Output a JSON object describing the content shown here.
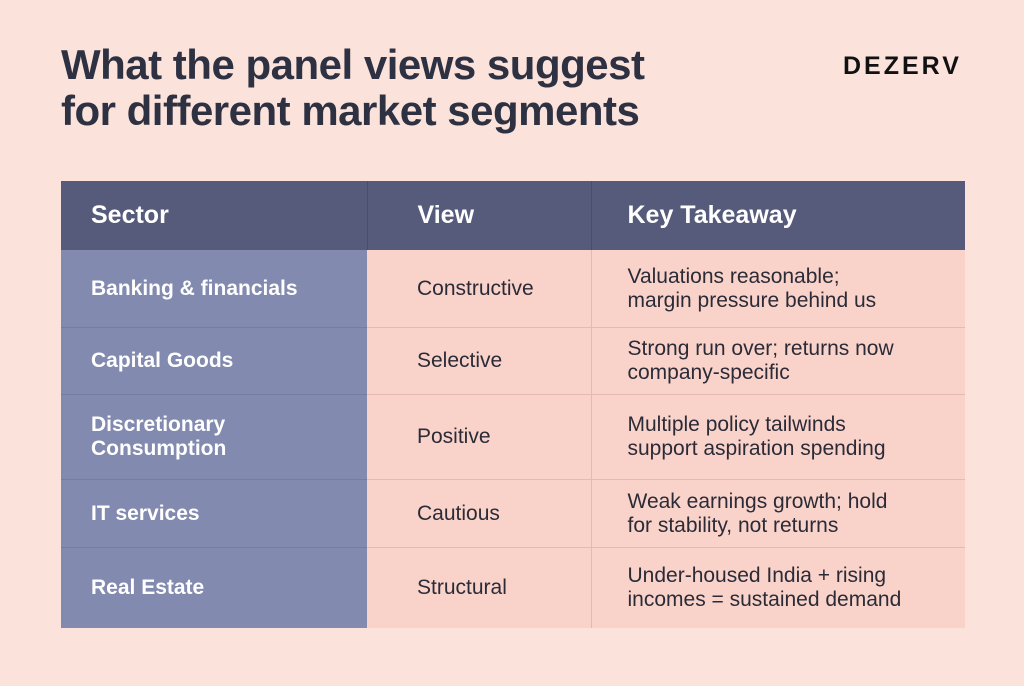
{
  "header": {
    "title_line1": "What the panel views suggest",
    "title_line2": "for different market segments",
    "brand": "DEZERV"
  },
  "table": {
    "columns": [
      "Sector",
      "View",
      "Key Takeaway"
    ],
    "rows": [
      {
        "sector": "Banking & financials",
        "view": "Constructive",
        "takeaway_line1": "Valuations reasonable;",
        "takeaway_line2": "margin pressure behind us"
      },
      {
        "sector": "Capital Goods",
        "view": "Selective",
        "takeaway_line1": "Strong run over; returns now",
        "takeaway_line2": "company-specific"
      },
      {
        "sector_line1": "Discretionary",
        "sector_line2": "Consumption",
        "view": "Positive",
        "takeaway_line1": "Multiple policy tailwinds",
        "takeaway_line2": "support aspiration spending"
      },
      {
        "sector": "IT services",
        "view": "Cautious",
        "takeaway_line1": "Weak earnings growth; hold",
        "takeaway_line2": "for stability, not returns"
      },
      {
        "sector": "Real Estate",
        "view": "Structural",
        "takeaway_line1": "Under-housed India + rising",
        "takeaway_line2": "incomes = sustained demand"
      }
    ]
  },
  "colors": {
    "background": "#fbe3dc",
    "header_bg": "#565b7b",
    "sector_bg": "#838aaf",
    "cell_bg": "#f9d3ca",
    "title_text": "#2e3142"
  }
}
